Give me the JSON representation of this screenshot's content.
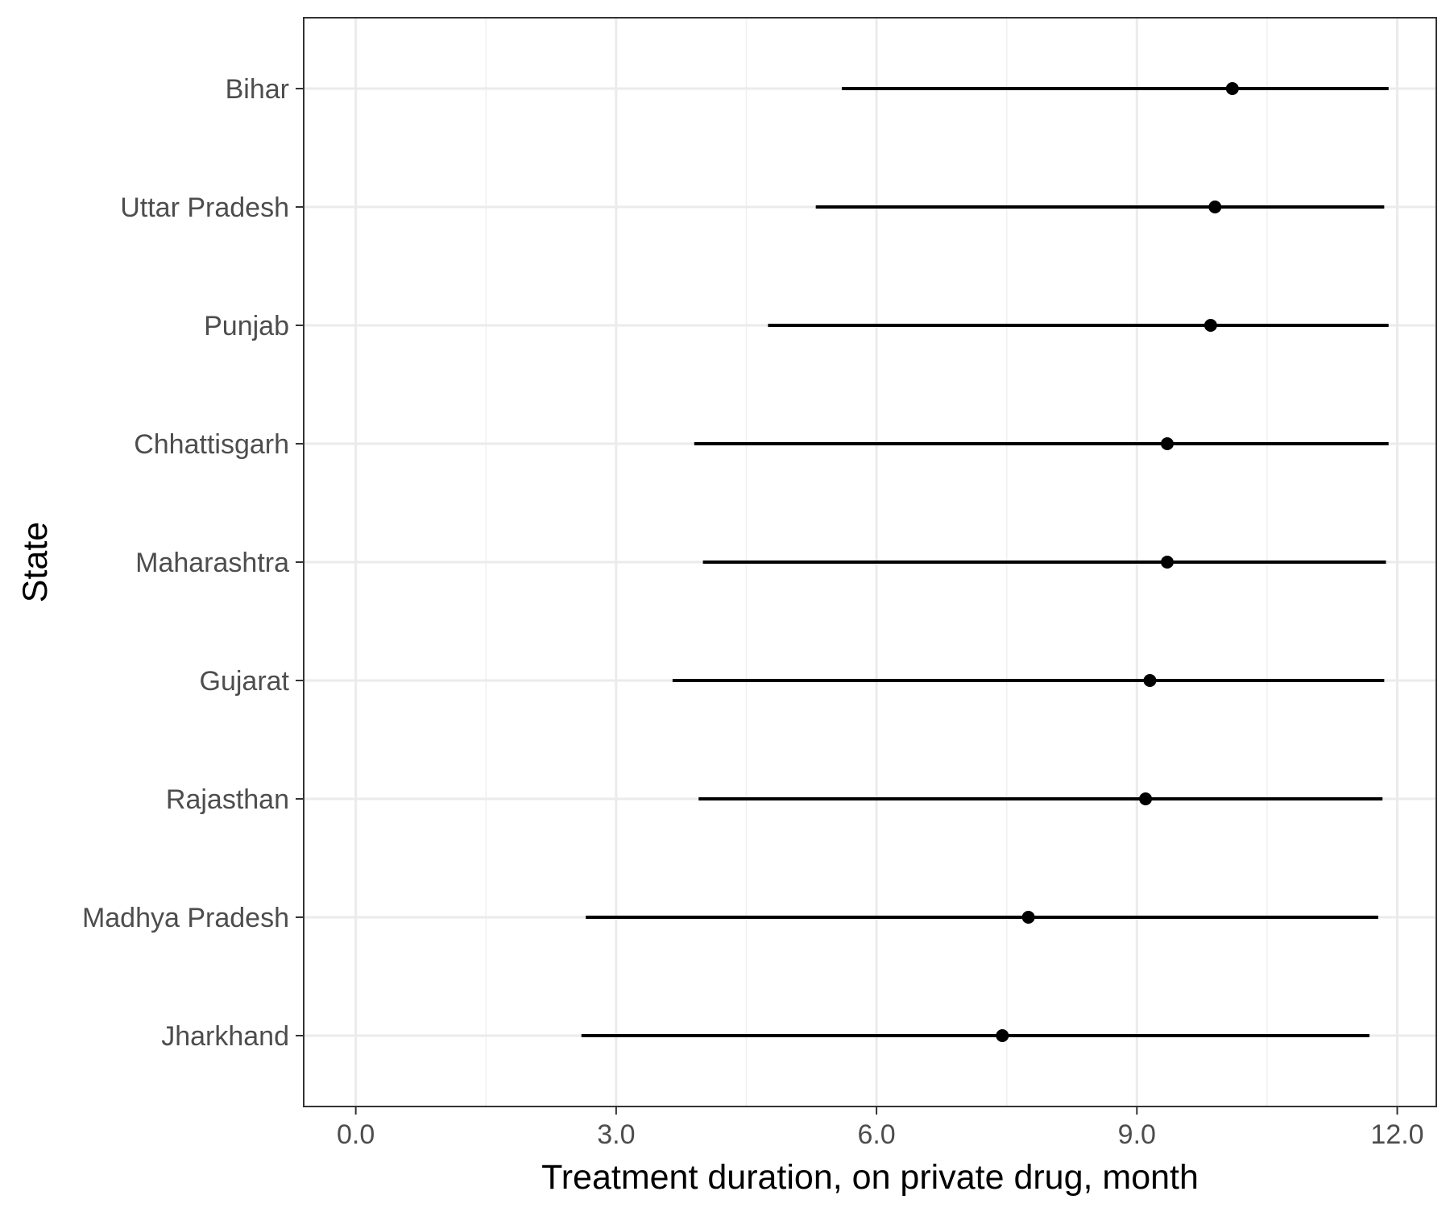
{
  "chart_data": {
    "type": "scatter",
    "subtype": "point-range",
    "title": "",
    "xlabel": "Treatment duration, on private drug, month",
    "ylabel": "State",
    "xlim": [
      -0.6,
      12.45
    ],
    "x_ticks": [
      0.0,
      3.0,
      6.0,
      9.0,
      12.0
    ],
    "x_tick_labels": [
      "0.0",
      "3.0",
      "6.0",
      "9.0",
      "12.0"
    ],
    "grid": true,
    "theme": "bw",
    "point_color": "#000000",
    "categories": [
      "Bihar",
      "Uttar Pradesh",
      "Punjab",
      "Chhattisgarh",
      "Maharashtra",
      "Gujarat",
      "Rajasthan",
      "Madhya Pradesh",
      "Jharkhand"
    ],
    "series": [
      {
        "points": [
          {
            "state": "Bihar",
            "estimate": 10.1,
            "lower": 5.6,
            "upper": 11.9
          },
          {
            "state": "Uttar Pradesh",
            "estimate": 9.9,
            "lower": 5.3,
            "upper": 11.85
          },
          {
            "state": "Punjab",
            "estimate": 9.85,
            "lower": 4.75,
            "upper": 11.9
          },
          {
            "state": "Chhattisgarh",
            "estimate": 9.35,
            "lower": 3.9,
            "upper": 11.9
          },
          {
            "state": "Maharashtra",
            "estimate": 9.35,
            "lower": 4.0,
            "upper": 11.87
          },
          {
            "state": "Gujarat",
            "estimate": 9.15,
            "lower": 3.65,
            "upper": 11.85
          },
          {
            "state": "Rajasthan",
            "estimate": 9.1,
            "lower": 3.95,
            "upper": 11.83
          },
          {
            "state": "Madhya Pradesh",
            "estimate": 7.75,
            "lower": 2.65,
            "upper": 11.78
          },
          {
            "state": "Jharkhand",
            "estimate": 7.45,
            "lower": 2.6,
            "upper": 11.68
          }
        ]
      }
    ]
  }
}
